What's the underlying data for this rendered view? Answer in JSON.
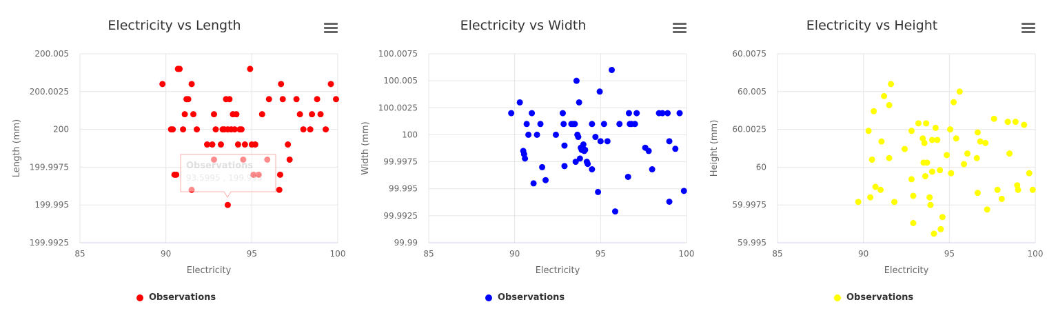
{
  "chart_data": [
    {
      "type": "scatter",
      "title": "Electricity vs Length",
      "xlabel": "Electricity",
      "ylabel": "Length (mm)",
      "xlim": [
        85,
        100
      ],
      "ylim": [
        199.9925,
        200.005
      ],
      "x_ticks": [
        "85",
        "90",
        "95",
        "100"
      ],
      "y_ticks": [
        "199.9925",
        "199.995",
        "199.9975",
        "200",
        "200.0025",
        "200.005"
      ],
      "grid": true,
      "legend": "bottom",
      "color": "#ff0000",
      "series": [
        {
          "name": "Observations",
          "points": [
            [
              89.8,
              200.003
            ],
            [
              90.3,
              200.0
            ],
            [
              90.4,
              200.0
            ],
            [
              90.5,
              199.997
            ],
            [
              90.6,
              199.997
            ],
            [
              90.7,
              200.004
            ],
            [
              90.8,
              200.004
            ],
            [
              91.0,
              200.0
            ],
            [
              91.1,
              200.001
            ],
            [
              91.2,
              200.002
            ],
            [
              91.3,
              200.002
            ],
            [
              91.5,
              200.003
            ],
            [
              91.6,
              200.001
            ],
            [
              91.8,
              200.0
            ],
            [
              91.5,
              199.996
            ],
            [
              92.4,
              199.999
            ],
            [
              92.7,
              199.999
            ],
            [
              92.8,
              200.001
            ],
            [
              92.9,
              200.0
            ],
            [
              93.2,
              199.999
            ],
            [
              93.3,
              200.0
            ],
            [
              93.4,
              200.0
            ],
            [
              93.5,
              200.002
            ],
            [
              93.6,
              200.0
            ],
            [
              93.7,
              200.002
            ],
            [
              93.8,
              200.0
            ],
            [
              93.9,
              200.001
            ],
            [
              94.0,
              200.0
            ],
            [
              94.1,
              200.001
            ],
            [
              94.2,
              199.999
            ],
            [
              94.3,
              200.0
            ],
            [
              94.4,
              200.0
            ],
            [
              94.5,
              199.998
            ],
            [
              94.6,
              199.999
            ],
            [
              94.9,
              200.004
            ],
            [
              95.0,
              199.999
            ],
            [
              95.1,
              199.997
            ],
            [
              95.2,
              199.999
            ],
            [
              95.4,
              199.997
            ],
            [
              95.6,
              200.001
            ],
            [
              95.9,
              199.998
            ],
            [
              96.0,
              200.002
            ],
            [
              96.6,
              199.996
            ],
            [
              96.65,
              199.997
            ],
            [
              96.7,
              200.003
            ],
            [
              96.8,
              200.002
            ],
            [
              97.1,
              199.999
            ],
            [
              97.2,
              199.998
            ],
            [
              97.6,
              200.002
            ],
            [
              97.8,
              200.001
            ],
            [
              98.0,
              200.0
            ],
            [
              98.4,
              200.0
            ],
            [
              98.5,
              200.001
            ],
            [
              98.8,
              200.002
            ],
            [
              99.0,
              200.001
            ],
            [
              99.3,
              200.0
            ],
            [
              99.6,
              200.003
            ],
            [
              99.9,
              200.002
            ],
            [
              93.6,
              199.995
            ],
            [
              92.8,
              199.998
            ]
          ]
        }
      ],
      "tooltip": {
        "series": "Observations",
        "text": "93.5995 , 199.995"
      }
    },
    {
      "type": "scatter",
      "title": "Electricity vs Width",
      "xlabel": "Electricity",
      "ylabel": "Width (mm)",
      "xlim": [
        85,
        100
      ],
      "ylim": [
        99.99,
        100.0075
      ],
      "x_ticks": [
        "85",
        "90",
        "95",
        "100"
      ],
      "y_ticks": [
        "99.99",
        "99.9925",
        "99.995",
        "99.9975",
        "100",
        "100.0025",
        "100.005",
        "100.0075"
      ],
      "grid": true,
      "legend": "bottom",
      "color": "#0000ff",
      "series": [
        {
          "name": "Observations",
          "points": [
            [
              89.8,
              100.002
            ],
            [
              90.3,
              100.003
            ],
            [
              90.5,
              99.9985
            ],
            [
              90.55,
              99.9982
            ],
            [
              90.6,
              99.9978
            ],
            [
              90.7,
              100.001
            ],
            [
              90.8,
              100.0
            ],
            [
              91.0,
              100.002
            ],
            [
              91.1,
              99.9955
            ],
            [
              91.3,
              100.0
            ],
            [
              91.5,
              100.001
            ],
            [
              91.6,
              99.997
            ],
            [
              91.8,
              99.9958
            ],
            [
              92.4,
              100.0
            ],
            [
              92.8,
              100.002
            ],
            [
              92.85,
              100.001
            ],
            [
              92.9,
              99.999
            ],
            [
              92.9,
              99.9971
            ],
            [
              93.3,
              100.001
            ],
            [
              93.4,
              100.001
            ],
            [
              93.5,
              100.001
            ],
            [
              93.55,
              99.9975
            ],
            [
              93.6,
              100.005
            ],
            [
              93.65,
              100.0
            ],
            [
              93.7,
              99.9998
            ],
            [
              93.75,
              100.003
            ],
            [
              93.8,
              99.9978
            ],
            [
              93.85,
              99.9988
            ],
            [
              93.9,
              99.9986
            ],
            [
              94.0,
              99.9991
            ],
            [
              94.05,
              99.9985
            ],
            [
              94.1,
              99.9986
            ],
            [
              94.2,
              99.9975
            ],
            [
              94.25,
              99.9973
            ],
            [
              94.5,
              99.9968
            ],
            [
              94.5,
              100.001
            ],
            [
              94.7,
              99.9998
            ],
            [
              94.85,
              99.9947
            ],
            [
              94.95,
              100.004
            ],
            [
              95.0,
              99.9994
            ],
            [
              95.2,
              100.001
            ],
            [
              95.4,
              99.9994
            ],
            [
              95.65,
              100.006
            ],
            [
              95.85,
              99.9929
            ],
            [
              96.1,
              100.001
            ],
            [
              96.6,
              99.9961
            ],
            [
              96.65,
              100.002
            ],
            [
              96.7,
              100.001
            ],
            [
              96.8,
              100.001
            ],
            [
              97.0,
              100.001
            ],
            [
              97.1,
              100.002
            ],
            [
              97.6,
              99.9988
            ],
            [
              97.8,
              99.9985
            ],
            [
              98.0,
              99.9968
            ],
            [
              98.4,
              100.002
            ],
            [
              98.6,
              100.002
            ],
            [
              98.9,
              100.002
            ],
            [
              99.0,
              99.9994
            ],
            [
              99.0,
              99.9938
            ],
            [
              99.35,
              99.9987
            ],
            [
              99.6,
              100.002
            ],
            [
              99.85,
              99.9948
            ]
          ]
        }
      ]
    },
    {
      "type": "scatter",
      "title": "Electricity vs Height",
      "xlabel": "Electricity",
      "ylabel": "Height (mm)",
      "xlim": [
        85,
        100
      ],
      "ylim": [
        59.995,
        60.0075
      ],
      "x_ticks": [
        "85",
        "90",
        "95",
        "100"
      ],
      "y_ticks": [
        "59.995",
        "59.9975",
        "60",
        "60.0025",
        "60.005",
        "60.0075"
      ],
      "grid": true,
      "legend": "bottom",
      "color": "#ffff00",
      "series": [
        {
          "name": "Observations",
          "points": [
            [
              89.7,
              59.9977
            ],
            [
              90.3,
              60.0024
            ],
            [
              90.4,
              59.998
            ],
            [
              90.5,
              60.0005
            ],
            [
              90.6,
              60.0037
            ],
            [
              90.7,
              59.9987
            ],
            [
              91.0,
              59.9985
            ],
            [
              91.05,
              60.0017
            ],
            [
              91.2,
              60.0047
            ],
            [
              91.5,
              60.0006
            ],
            [
              91.5,
              60.0041
            ],
            [
              91.6,
              60.0055
            ],
            [
              91.8,
              59.9977
            ],
            [
              92.4,
              60.0012
            ],
            [
              92.8,
              60.0024
            ],
            [
              92.8,
              59.9992
            ],
            [
              92.9,
              59.9981
            ],
            [
              92.9,
              59.9963
            ],
            [
              93.2,
              60.0029
            ],
            [
              93.45,
              60.0019
            ],
            [
              93.5,
              60.0003
            ],
            [
              93.55,
              60.0016
            ],
            [
              93.6,
              59.9994
            ],
            [
              93.65,
              60.0029
            ],
            [
              93.7,
              60.0003
            ],
            [
              93.85,
              59.998
            ],
            [
              93.9,
              59.9975
            ],
            [
              94.0,
              59.9997
            ],
            [
              94.0,
              60.0018
            ],
            [
              94.1,
              59.9956
            ],
            [
              94.2,
              60.0026
            ],
            [
              94.3,
              60.0018
            ],
            [
              94.45,
              59.9998
            ],
            [
              94.5,
              59.9959
            ],
            [
              94.6,
              59.9967
            ],
            [
              94.85,
              60.0008
            ],
            [
              95.05,
              60.0025
            ],
            [
              95.1,
              59.9996
            ],
            [
              95.25,
              60.0043
            ],
            [
              95.4,
              60.0019
            ],
            [
              95.6,
              60.005
            ],
            [
              95.85,
              60.0002
            ],
            [
              96.05,
              60.0009
            ],
            [
              96.6,
              60.0006
            ],
            [
              96.65,
              60.0023
            ],
            [
              96.65,
              59.9983
            ],
            [
              96.8,
              60.0017
            ],
            [
              97.1,
              60.0016
            ],
            [
              97.2,
              59.9972
            ],
            [
              97.6,
              60.0032
            ],
            [
              97.8,
              59.9985
            ],
            [
              98.05,
              59.9979
            ],
            [
              98.4,
              60.003
            ],
            [
              98.5,
              60.0009
            ],
            [
              98.85,
              60.003
            ],
            [
              98.95,
              59.9988
            ],
            [
              99.0,
              59.9985
            ],
            [
              99.35,
              60.0028
            ],
            [
              99.65,
              59.9996
            ],
            [
              99.85,
              59.9985
            ]
          ]
        }
      ]
    }
  ]
}
